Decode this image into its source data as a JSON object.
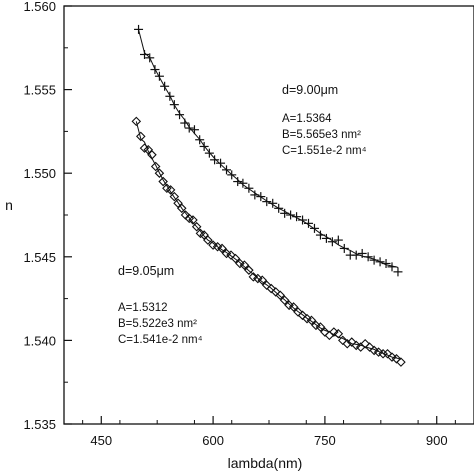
{
  "chart_data": {
    "type": "scatter",
    "xlabel": "lambda(nm)",
    "ylabel": "n",
    "xlim": [
      400,
      950
    ],
    "ylim": [
      1.535,
      1.56
    ],
    "x_ticks": [
      450,
      600,
      750,
      900
    ],
    "x_tick_labels": [
      "450",
      "600",
      "750",
      "900"
    ],
    "y_ticks": [
      1.535,
      1.54,
      1.545,
      1.55,
      1.555,
      1.56
    ],
    "y_tick_labels": [
      "1.535",
      "1.540",
      "1.545",
      "1.550",
      "1.555",
      "1.560"
    ],
    "grid": false,
    "legend": "none",
    "colors": {
      "ink": "#111111"
    },
    "series": [
      {
        "marker": "plus",
        "fit": {
          "A": 1.5364,
          "B": 5565,
          "C": 0.01551
        },
        "x": [
          500,
          508,
          515,
          522,
          528,
          535,
          542,
          548,
          555,
          562,
          568,
          575,
          582,
          588,
          595,
          602,
          610,
          618,
          625,
          633,
          640,
          648,
          656,
          664,
          672,
          680,
          688,
          696,
          704,
          712,
          720,
          728,
          736,
          744,
          752,
          760,
          768,
          776,
          784,
          792,
          800,
          808,
          816,
          824,
          832,
          840,
          848
        ],
        "y": [
          1.5586,
          1.5571,
          1.5569,
          1.5562,
          1.5558,
          1.5552,
          1.5546,
          1.5541,
          1.5535,
          1.553,
          1.5527,
          1.5526,
          1.552,
          1.5516,
          1.5512,
          1.5508,
          1.5506,
          1.5502,
          1.5499,
          1.5495,
          1.5494,
          1.5491,
          1.5487,
          1.5486,
          1.5483,
          1.5482,
          1.5479,
          1.5476,
          1.5475,
          1.5474,
          1.5472,
          1.547,
          1.5467,
          1.5463,
          1.5461,
          1.5459,
          1.546,
          1.5455,
          1.5451,
          1.5451,
          1.5452,
          1.545,
          1.5448,
          1.5447,
          1.5446,
          1.5444,
          1.5441
        ]
      },
      {
        "marker": "diamond",
        "fit": {
          "A": 1.5312,
          "B": 5522,
          "C": 0.01541
        },
        "x": [
          497,
          503,
          508,
          513,
          518,
          523,
          528,
          533,
          538,
          543,
          548,
          553,
          558,
          563,
          568,
          573,
          578,
          583,
          588,
          593,
          600,
          606,
          612,
          618,
          624,
          630,
          636,
          642,
          648,
          654,
          660,
          666,
          672,
          678,
          684,
          690,
          696,
          702,
          708,
          714,
          720,
          726,
          732,
          738,
          744,
          750,
          756,
          762,
          768,
          774,
          780,
          786,
          792,
          798,
          804,
          810,
          816,
          822,
          828,
          834,
          840,
          846,
          852
        ],
        "y": [
          1.5531,
          1.5522,
          1.5515,
          1.5514,
          1.5511,
          1.5504,
          1.55,
          1.5495,
          1.5491,
          1.549,
          1.5486,
          1.5482,
          1.5479,
          1.5475,
          1.5473,
          1.5472,
          1.5468,
          1.5464,
          1.5463,
          1.546,
          1.5457,
          1.5456,
          1.5455,
          1.5452,
          1.5451,
          1.5449,
          1.5446,
          1.5445,
          1.5442,
          1.5438,
          1.5437,
          1.5436,
          1.5433,
          1.5431,
          1.5429,
          1.5427,
          1.5424,
          1.5421,
          1.542,
          1.5417,
          1.5415,
          1.5413,
          1.5412,
          1.5409,
          1.5408,
          1.5405,
          1.5403,
          1.5405,
          1.5404,
          1.54,
          1.5398,
          1.5399,
          1.5397,
          1.5396,
          1.5398,
          1.5396,
          1.5394,
          1.5393,
          1.5392,
          1.5392,
          1.539,
          1.5389,
          1.5387
        ]
      }
    ],
    "annotations": [
      {
        "id": "upper",
        "title": "d=9.00μm",
        "A": "A=1.5364",
        "B": "B=5.565e3 nm²",
        "C": "C=1.551e-2 nm⁴"
      },
      {
        "id": "lower",
        "title": "d=9.05μm",
        "A": "A=1.5312",
        "B": "B=5.522e3 nm²",
        "C": "C=1.541e-2 nm⁴"
      }
    ]
  }
}
